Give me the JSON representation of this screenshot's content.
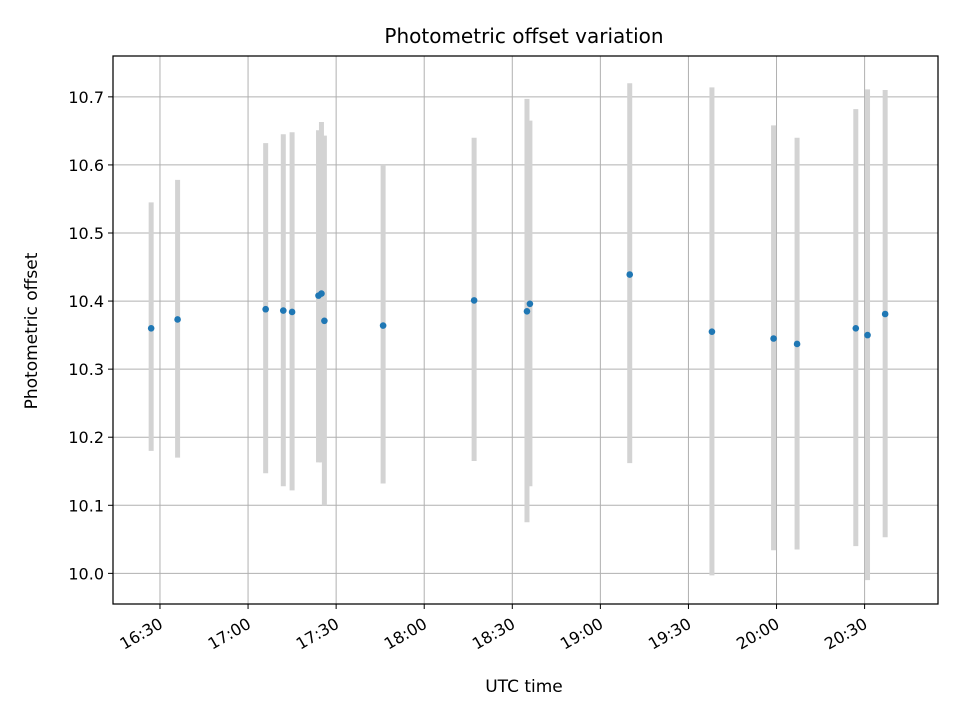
{
  "chart_data": {
    "type": "scatter",
    "title": "Photometric offset variation",
    "xlabel": "UTC time",
    "ylabel": "Photometric offset",
    "xlim": [
      "16:14",
      "20:55"
    ],
    "ylim": [
      9.955,
      10.76
    ],
    "grid": true,
    "x_ticks": [
      "16:30",
      "17:00",
      "17:30",
      "18:00",
      "18:30",
      "19:00",
      "19:30",
      "20:00",
      "20:30"
    ],
    "y_ticks": [
      "10.0",
      "10.1",
      "10.2",
      "10.3",
      "10.4",
      "10.5",
      "10.6",
      "10.7"
    ],
    "point_color": "#1f77b4",
    "errorbar_color": "#d3d3d3",
    "points": [
      {
        "time": "16:27",
        "offset": 10.36,
        "low": 10.18,
        "high": 10.545
      },
      {
        "time": "16:36",
        "offset": 10.373,
        "low": 10.17,
        "high": 10.578
      },
      {
        "time": "17:06",
        "offset": 10.388,
        "low": 10.147,
        "high": 10.632
      },
      {
        "time": "17:12",
        "offset": 10.386,
        "low": 10.128,
        "high": 10.645
      },
      {
        "time": "17:15",
        "offset": 10.384,
        "low": 10.122,
        "high": 10.648
      },
      {
        "time": "17:24",
        "offset": 10.408,
        "low": 10.163,
        "high": 10.651
      },
      {
        "time": "17:25",
        "offset": 10.411,
        "low": 10.163,
        "high": 10.663
      },
      {
        "time": "17:26",
        "offset": 10.371,
        "low": 10.1,
        "high": 10.643
      },
      {
        "time": "17:46",
        "offset": 10.364,
        "low": 10.132,
        "high": 10.6
      },
      {
        "time": "18:17",
        "offset": 10.401,
        "low": 10.165,
        "high": 10.64
      },
      {
        "time": "18:35",
        "offset": 10.385,
        "low": 10.075,
        "high": 10.697
      },
      {
        "time": "18:36",
        "offset": 10.396,
        "low": 10.128,
        "high": 10.665
      },
      {
        "time": "19:10",
        "offset": 10.439,
        "low": 10.162,
        "high": 10.72
      },
      {
        "time": "19:38",
        "offset": 10.355,
        "low": 9.997,
        "high": 10.714
      },
      {
        "time": "19:59",
        "offset": 10.345,
        "low": 10.034,
        "high": 10.658
      },
      {
        "time": "20:07",
        "offset": 10.337,
        "low": 10.035,
        "high": 10.64
      },
      {
        "time": "20:27",
        "offset": 10.36,
        "low": 10.04,
        "high": 10.682
      },
      {
        "time": "20:31",
        "offset": 10.35,
        "low": 9.99,
        "high": 10.711
      },
      {
        "time": "20:37",
        "offset": 10.381,
        "low": 10.053,
        "high": 10.71
      }
    ]
  }
}
